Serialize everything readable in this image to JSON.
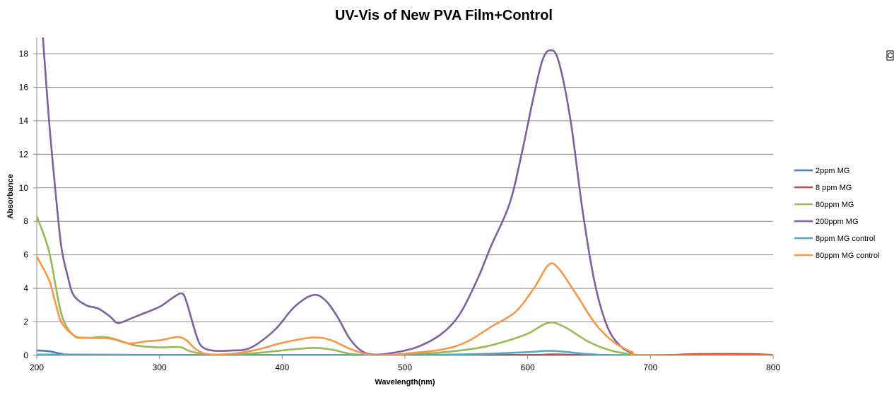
{
  "chart_data": {
    "type": "line",
    "title": "UV-Vis of New PVA Film+Control",
    "xlabel": "Wavelength(nm)",
    "ylabel": "Absorbance",
    "xlim": [
      200,
      800
    ],
    "ylim": [
      0,
      19
    ],
    "xticks": [
      200,
      300,
      400,
      500,
      600,
      700,
      800
    ],
    "yticks": [
      0,
      2,
      4,
      6,
      8,
      10,
      12,
      14,
      16,
      18
    ],
    "grid": true,
    "legend_position": "right",
    "edge_mark": "C",
    "series": [
      {
        "name": "2ppm MG",
        "color": "#4a7ebb",
        "points": [
          [
            200,
            0.3
          ],
          [
            210,
            0.25
          ],
          [
            220,
            0.1
          ],
          [
            230,
            0.05
          ],
          [
            300,
            0.03
          ],
          [
            400,
            0.02
          ],
          [
            500,
            0.02
          ],
          [
            600,
            0.02
          ],
          [
            700,
            0.02
          ],
          [
            740,
            0.04
          ],
          [
            780,
            0.05
          ],
          [
            800,
            0.02
          ]
        ]
      },
      {
        "name": "8 ppm MG",
        "color": "#be4b48",
        "points": [
          [
            200,
            0.05
          ],
          [
            300,
            0.02
          ],
          [
            400,
            0.02
          ],
          [
            500,
            0.02
          ],
          [
            600,
            0.03
          ],
          [
            620,
            0.06
          ],
          [
            650,
            0.02
          ],
          [
            700,
            0.0
          ],
          [
            740,
            0.08
          ],
          [
            780,
            0.08
          ],
          [
            800,
            0.03
          ]
        ]
      },
      {
        "name": "80ppm MG",
        "color": "#98b954",
        "points": [
          [
            200,
            8.3
          ],
          [
            210,
            6.2
          ],
          [
            220,
            2.5
          ],
          [
            230,
            1.2
          ],
          [
            240,
            1.05
          ],
          [
            255,
            1.1
          ],
          [
            265,
            0.95
          ],
          [
            280,
            0.6
          ],
          [
            300,
            0.48
          ],
          [
            310,
            0.5
          ],
          [
            318,
            0.48
          ],
          [
            325,
            0.25
          ],
          [
            340,
            0.05
          ],
          [
            360,
            0.06
          ],
          [
            380,
            0.15
          ],
          [
            400,
            0.3
          ],
          [
            425,
            0.45
          ],
          [
            440,
            0.35
          ],
          [
            455,
            0.1
          ],
          [
            470,
            0.02
          ],
          [
            500,
            0.05
          ],
          [
            530,
            0.18
          ],
          [
            560,
            0.45
          ],
          [
            580,
            0.8
          ],
          [
            600,
            1.3
          ],
          [
            617,
            1.95
          ],
          [
            630,
            1.7
          ],
          [
            650,
            0.8
          ],
          [
            670,
            0.25
          ],
          [
            690,
            0.03
          ],
          [
            700,
            0.0
          ],
          [
            800,
            0.0
          ]
        ]
      },
      {
        "name": "200ppm MG",
        "color": "#7d60a0",
        "points": [
          [
            205,
            19
          ],
          [
            210,
            14
          ],
          [
            215,
            10
          ],
          [
            220,
            6.5
          ],
          [
            225,
            4.8
          ],
          [
            230,
            3.6
          ],
          [
            240,
            3.0
          ],
          [
            250,
            2.8
          ],
          [
            260,
            2.3
          ],
          [
            265,
            1.95
          ],
          [
            270,
            2.0
          ],
          [
            280,
            2.3
          ],
          [
            300,
            2.9
          ],
          [
            310,
            3.4
          ],
          [
            318,
            3.7
          ],
          [
            322,
            3.2
          ],
          [
            330,
            1.2
          ],
          [
            335,
            0.5
          ],
          [
            345,
            0.28
          ],
          [
            360,
            0.3
          ],
          [
            370,
            0.35
          ],
          [
            380,
            0.7
          ],
          [
            395,
            1.6
          ],
          [
            410,
            2.9
          ],
          [
            425,
            3.6
          ],
          [
            435,
            3.3
          ],
          [
            445,
            2.3
          ],
          [
            455,
            1.0
          ],
          [
            465,
            0.25
          ],
          [
            475,
            0.05
          ],
          [
            490,
            0.15
          ],
          [
            510,
            0.5
          ],
          [
            530,
            1.3
          ],
          [
            545,
            2.5
          ],
          [
            560,
            4.7
          ],
          [
            570,
            6.5
          ],
          [
            585,
            9.0
          ],
          [
            595,
            12.0
          ],
          [
            605,
            15.5
          ],
          [
            612,
            17.6
          ],
          [
            618,
            18.2
          ],
          [
            625,
            17.6
          ],
          [
            635,
            14.0
          ],
          [
            645,
            8.5
          ],
          [
            655,
            4.2
          ],
          [
            665,
            1.7
          ],
          [
            675,
            0.6
          ],
          [
            685,
            0.15
          ],
          [
            695,
            0.0
          ],
          [
            800,
            0.0
          ]
        ]
      },
      {
        "name": "8ppm MG control",
        "color": "#4bacc6",
        "points": [
          [
            200,
            0.05
          ],
          [
            300,
            0.02
          ],
          [
            400,
            0.02
          ],
          [
            500,
            0.03
          ],
          [
            560,
            0.08
          ],
          [
            600,
            0.2
          ],
          [
            617,
            0.28
          ],
          [
            630,
            0.22
          ],
          [
            650,
            0.08
          ],
          [
            680,
            0.01
          ],
          [
            800,
            0.0
          ]
        ]
      },
      {
        "name": "80ppm MG control",
        "color": "#f79646",
        "points": [
          [
            200,
            5.9
          ],
          [
            210,
            4.5
          ],
          [
            215,
            3.2
          ],
          [
            220,
            2.0
          ],
          [
            230,
            1.2
          ],
          [
            240,
            1.05
          ],
          [
            260,
            1.0
          ],
          [
            275,
            0.72
          ],
          [
            290,
            0.85
          ],
          [
            300,
            0.9
          ],
          [
            310,
            1.05
          ],
          [
            316,
            1.1
          ],
          [
            322,
            0.9
          ],
          [
            330,
            0.35
          ],
          [
            340,
            0.07
          ],
          [
            360,
            0.1
          ],
          [
            380,
            0.35
          ],
          [
            400,
            0.75
          ],
          [
            425,
            1.07
          ],
          [
            440,
            0.9
          ],
          [
            455,
            0.4
          ],
          [
            470,
            0.05
          ],
          [
            480,
            0.0
          ],
          [
            500,
            0.1
          ],
          [
            530,
            0.35
          ],
          [
            550,
            0.8
          ],
          [
            570,
            1.7
          ],
          [
            590,
            2.6
          ],
          [
            605,
            4.0
          ],
          [
            617,
            5.4
          ],
          [
            625,
            5.2
          ],
          [
            640,
            3.6
          ],
          [
            655,
            1.9
          ],
          [
            670,
            0.8
          ],
          [
            685,
            0.2
          ],
          [
            695,
            0.0
          ],
          [
            800,
            0.0
          ]
        ]
      }
    ]
  }
}
